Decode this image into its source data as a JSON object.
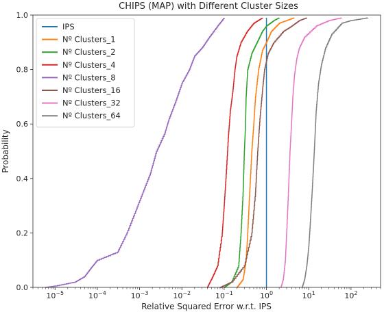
{
  "chart_data": {
    "type": "line",
    "title": "CHIPS (MAP) with Different Cluster Sizes",
    "xlabel": "Relative Squared Error w.r.t. IPS",
    "ylabel": "Probability",
    "xscale": "log",
    "xlim": [
      3e-06,
      500
    ],
    "ylim": [
      0.0,
      1.0
    ],
    "x_ticks": [
      1e-05,
      0.0001,
      0.001,
      0.01,
      0.1,
      1,
      10,
      100
    ],
    "x_tick_labels": [
      "10",
      "10",
      "10",
      "10",
      "10",
      "10",
      "10",
      "10"
    ],
    "x_tick_exponents": [
      "−5",
      "−4",
      "−3",
      "−2",
      "−1",
      "0",
      "1",
      "2"
    ],
    "y_ticks": [
      0.0,
      0.2,
      0.4,
      0.6,
      0.8,
      1.0
    ],
    "y_tick_labels": [
      "0.0",
      "0.2",
      "0.4",
      "0.6",
      "0.8",
      "1.0"
    ],
    "legend_position": "top-left",
    "grid": false,
    "series": [
      {
        "name": "IPS",
        "color": "#1f77b4",
        "points": [
          [
            1,
            0.0
          ],
          [
            1,
            0.99
          ]
        ]
      },
      {
        "name": "Nº Clusters_1",
        "color": "#ff7f0e",
        "points": [
          [
            0.2,
            0.0
          ],
          [
            0.28,
            0.03
          ],
          [
            0.33,
            0.1
          ],
          [
            0.36,
            0.2
          ],
          [
            0.4,
            0.35
          ],
          [
            0.45,
            0.5
          ],
          [
            0.5,
            0.6
          ],
          [
            0.55,
            0.7
          ],
          [
            0.65,
            0.8
          ],
          [
            0.8,
            0.87
          ],
          [
            1.0,
            0.9
          ],
          [
            1.3,
            0.94
          ],
          [
            2.0,
            0.97
          ],
          [
            3.0,
            0.98
          ],
          [
            4.5,
            0.99
          ]
        ]
      },
      {
        "name": "Nº Clusters_2",
        "color": "#2ca02c",
        "points": [
          [
            0.1,
            0.0
          ],
          [
            0.15,
            0.02
          ],
          [
            0.22,
            0.08
          ],
          [
            0.25,
            0.2
          ],
          [
            0.28,
            0.35
          ],
          [
            0.3,
            0.5
          ],
          [
            0.32,
            0.6
          ],
          [
            0.33,
            0.7
          ],
          [
            0.36,
            0.8
          ],
          [
            0.45,
            0.86
          ],
          [
            0.6,
            0.9
          ],
          [
            0.8,
            0.94
          ],
          [
            1.0,
            0.96
          ],
          [
            1.5,
            0.98
          ],
          [
            2.0,
            0.99
          ]
        ]
      },
      {
        "name": "Nº Clusters_4",
        "color": "#d62728",
        "points": [
          [
            0.04,
            0.0
          ],
          [
            0.05,
            0.03
          ],
          [
            0.07,
            0.08
          ],
          [
            0.09,
            0.2
          ],
          [
            0.1,
            0.3
          ],
          [
            0.11,
            0.4
          ],
          [
            0.125,
            0.55
          ],
          [
            0.14,
            0.65
          ],
          [
            0.16,
            0.72
          ],
          [
            0.18,
            0.8
          ],
          [
            0.2,
            0.85
          ],
          [
            0.25,
            0.9
          ],
          [
            0.35,
            0.94
          ],
          [
            0.5,
            0.97
          ],
          [
            0.8,
            0.99
          ]
        ]
      },
      {
        "name": "Nº Clusters_8",
        "color": "#9467bd",
        "points": [
          [
            6e-06,
            0.0
          ],
          [
            1e-05,
            0.005
          ],
          [
            3e-05,
            0.02
          ],
          [
            5e-05,
            0.04
          ],
          [
            7e-05,
            0.07
          ],
          [
            0.0001,
            0.1
          ],
          [
            0.0003,
            0.13
          ],
          [
            0.0005,
            0.2
          ],
          [
            0.0008,
            0.28
          ],
          [
            0.0012,
            0.35
          ],
          [
            0.0018,
            0.42
          ],
          [
            0.0025,
            0.5
          ],
          [
            0.004,
            0.57
          ],
          [
            0.005,
            0.62
          ],
          [
            0.007,
            0.68
          ],
          [
            0.01,
            0.75
          ],
          [
            0.015,
            0.8
          ],
          [
            0.02,
            0.85
          ],
          [
            0.03,
            0.88
          ],
          [
            0.045,
            0.92
          ],
          [
            0.07,
            0.96
          ],
          [
            0.1,
            0.99
          ]
        ]
      },
      {
        "name": "Nº Clusters_16",
        "color": "#8c564b",
        "points": [
          [
            0.08,
            0.0
          ],
          [
            0.15,
            0.02
          ],
          [
            0.3,
            0.08
          ],
          [
            0.45,
            0.2
          ],
          [
            0.55,
            0.35
          ],
          [
            0.62,
            0.5
          ],
          [
            0.7,
            0.62
          ],
          [
            0.8,
            0.72
          ],
          [
            0.9,
            0.8
          ],
          [
            1.1,
            0.86
          ],
          [
            1.5,
            0.9
          ],
          [
            2.5,
            0.94
          ],
          [
            4.0,
            0.96
          ],
          [
            6.0,
            0.98
          ],
          [
            9.0,
            0.99
          ]
        ]
      },
      {
        "name": "Nº Clusters_32",
        "color": "#e377c2",
        "points": [
          [
            2.2,
            0.0
          ],
          [
            2.5,
            0.03
          ],
          [
            2.8,
            0.1
          ],
          [
            3.0,
            0.2
          ],
          [
            3.3,
            0.35
          ],
          [
            3.6,
            0.5
          ],
          [
            3.9,
            0.6
          ],
          [
            4.2,
            0.7
          ],
          [
            4.6,
            0.78
          ],
          [
            5.2,
            0.84
          ],
          [
            6.0,
            0.88
          ],
          [
            8.0,
            0.92
          ],
          [
            15.0,
            0.96
          ],
          [
            30.0,
            0.98
          ],
          [
            60.0,
            0.99
          ]
        ]
      },
      {
        "name": "Nº Clusters_64",
        "color": "#7f7f7f",
        "points": [
          [
            7.0,
            0.0
          ],
          [
            8.0,
            0.03
          ],
          [
            9.0,
            0.08
          ],
          [
            10.0,
            0.15
          ],
          [
            11.0,
            0.25
          ],
          [
            12.0,
            0.35
          ],
          [
            13.0,
            0.45
          ],
          [
            14.0,
            0.55
          ],
          [
            15.0,
            0.65
          ],
          [
            17.0,
            0.75
          ],
          [
            20.0,
            0.82
          ],
          [
            25.0,
            0.88
          ],
          [
            35.0,
            0.93
          ],
          [
            60.0,
            0.97
          ],
          [
            100.0,
            0.98
          ],
          [
            250.0,
            0.99
          ]
        ]
      }
    ]
  }
}
